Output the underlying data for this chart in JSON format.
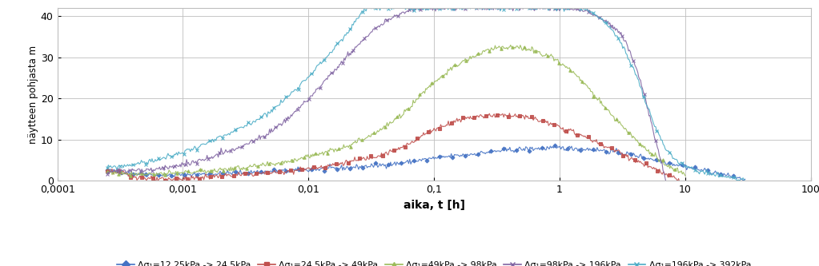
{
  "xlabel": "aika, t [h]",
  "ylabel": "näytteen pohjasta m",
  "xlim": [
    0.0001,
    100
  ],
  "ylim": [
    0,
    42
  ],
  "yticks": [
    0,
    10,
    20,
    30,
    40
  ],
  "xtick_vals": [
    0.0001,
    0.001,
    0.01,
    0.1,
    1,
    10,
    100
  ],
  "xtick_labels": [
    "0,0001",
    "0,001",
    "0,01",
    "0,1",
    "1",
    "10",
    "100"
  ],
  "series": [
    {
      "label": "Δσ₁=12,25kPa -> 24,5kPa",
      "color": "#4472C4",
      "marker": "D",
      "lw": 1.2,
      "ms": 2.5,
      "key_x": [
        0.00025,
        0.0004,
        0.0007,
        0.001,
        0.002,
        0.005,
        0.01,
        0.02,
        0.05,
        0.1,
        0.2,
        0.4,
        0.7,
        1.0,
        1.5,
        2.5,
        4.0,
        6.0,
        10.0,
        20.0,
        30.0
      ],
      "key_y": [
        2.5,
        1.8,
        1.4,
        1.5,
        1.8,
        2.3,
        2.7,
        3.2,
        4.2,
        5.5,
        6.5,
        7.5,
        7.9,
        8.0,
        7.8,
        7.2,
        6.2,
        5.0,
        3.5,
        1.5,
        0.3
      ]
    },
    {
      "label": "Δσ₁=24,5kPa -> 49kPa",
      "color": "#C0504D",
      "marker": "s",
      "lw": 1.2,
      "ms": 2.5,
      "key_x": [
        0.00025,
        0.0004,
        0.0007,
        0.001,
        0.002,
        0.005,
        0.01,
        0.02,
        0.05,
        0.1,
        0.2,
        0.35,
        0.6,
        1.0,
        1.5,
        2.5,
        4.0,
        6.0,
        9.0
      ],
      "key_y": [
        2.8,
        1.2,
        0.3,
        0.5,
        1.2,
        2.0,
        3.0,
        4.5,
        7.5,
        12.5,
        15.5,
        16.0,
        15.2,
        13.0,
        11.0,
        8.0,
        5.0,
        2.5,
        0.2
      ]
    },
    {
      "label": "Δσ₁=49kPa -> 98kPa",
      "color": "#9BBB59",
      "marker": "^",
      "lw": 1.2,
      "ms": 2.5,
      "key_x": [
        0.00025,
        0.0004,
        0.0007,
        0.001,
        0.002,
        0.005,
        0.01,
        0.02,
        0.05,
        0.1,
        0.2,
        0.35,
        0.55,
        0.8,
        1.2,
        2.0,
        3.0,
        5.0,
        7.0,
        10.0
      ],
      "key_y": [
        2.2,
        1.8,
        1.7,
        2.0,
        2.7,
        4.0,
        6.0,
        8.5,
        15.0,
        24.0,
        30.0,
        32.5,
        32.0,
        30.5,
        27.0,
        20.0,
        14.0,
        7.5,
        4.0,
        1.5
      ]
    },
    {
      "label": "Δσ₁=98kPa -> 196kPa",
      "color": "#8064A2",
      "marker": "x",
      "lw": 1.2,
      "ms": 3.0,
      "key_x": [
        0.00025,
        0.0004,
        0.0007,
        0.001,
        0.002,
        0.005,
        0.01,
        0.02,
        0.04,
        0.08,
        1.0,
        1.5,
        2.0,
        3.0,
        4.0,
        5.0,
        6.0,
        7.0
      ],
      "key_y": [
        2.2,
        2.5,
        3.0,
        4.0,
        6.5,
        12.0,
        20.0,
        30.0,
        38.5,
        42.0,
        42.0,
        41.5,
        40.0,
        36.0,
        28.0,
        18.0,
        8.0,
        0.5
      ]
    },
    {
      "label": "Δσ₁=196kPa -> 392kPa",
      "color": "#4BACC6",
      "marker": "x",
      "lw": 1.2,
      "ms": 3.0,
      "key_x": [
        0.00025,
        0.0004,
        0.0007,
        0.001,
        0.002,
        0.005,
        0.008,
        0.012,
        0.02,
        0.03,
        1.5,
        2.0,
        3.0,
        4.0,
        5.0,
        7.0,
        10.0,
        15.0,
        20.0,
        30.0
      ],
      "key_y": [
        3.2,
        4.0,
        5.5,
        7.0,
        10.5,
        17.0,
        22.5,
        28.0,
        35.5,
        42.0,
        42.0,
        40.0,
        34.0,
        26.0,
        18.0,
        8.0,
        3.5,
        2.0,
        1.2,
        0.3
      ]
    }
  ],
  "legend_labels": [
    "Δσ₁=12,25kPa -> 24,5kPa",
    "Δσ₁=24,5kPa -> 49kPa",
    "Δσ₁=49kPa -> 98kPa",
    "Δσ₁=98kPa -> 196kPa",
    "Δσ₁=196kPa -> 392kPa"
  ],
  "legend_colors": [
    "#4472C4",
    "#C0504D",
    "#9BBB59",
    "#8064A2",
    "#4BACC6"
  ],
  "legend_markers": [
    "D",
    "s",
    "^",
    "x",
    "x"
  ]
}
